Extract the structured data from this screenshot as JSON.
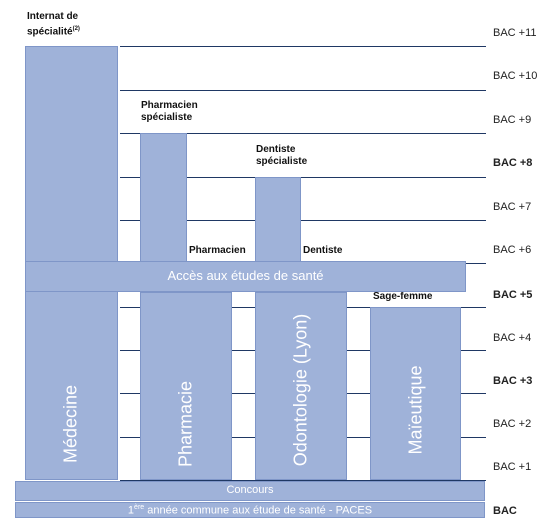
{
  "levels": [
    {
      "label": "BAC +11",
      "bold": false
    },
    {
      "label": "BAC +10",
      "bold": false
    },
    {
      "label": "BAC +9",
      "bold": false
    },
    {
      "label": "BAC +8",
      "bold": true
    },
    {
      "label": "BAC +7",
      "bold": false
    },
    {
      "label": "BAC +6",
      "bold": false
    },
    {
      "label": "BAC +5",
      "bold": true
    },
    {
      "label": "BAC +4",
      "bold": false
    },
    {
      "label": "BAC  +3",
      "bold": true
    },
    {
      "label": "BAC +2",
      "bold": false
    },
    {
      "label": "BAC +1",
      "bold": false
    },
    {
      "label": "BAC",
      "bold": true
    }
  ],
  "top_labels": {
    "internat_line1": "Internat de",
    "internat_line2": "spécialité",
    "internat_note": "(2)",
    "pharmacien_specialiste_1": "Pharmacien",
    "pharmacien_specialiste_2": "spécialiste",
    "dentiste_specialiste_1": "Dentiste",
    "dentiste_specialiste_2": "spécialiste",
    "pharmacien": "Pharmacien",
    "dentiste": "Dentiste",
    "sage_femme": "Sage-femme"
  },
  "blocks": {
    "medecine": "Médecine",
    "pharmacie": "Pharmacie",
    "odontologie": "Odontologie (Lyon)",
    "maieutique": "Maïeutique",
    "acces": "Accès aux études de santé",
    "concours": "Concours",
    "paces_sup": "ère",
    "paces_num": "1",
    "paces_text": " année commune aux étude de santé - PACES"
  },
  "colors": {
    "block_fill": "#9fb2d9",
    "block_border": "#7f96c8",
    "line": "#1f3864"
  }
}
